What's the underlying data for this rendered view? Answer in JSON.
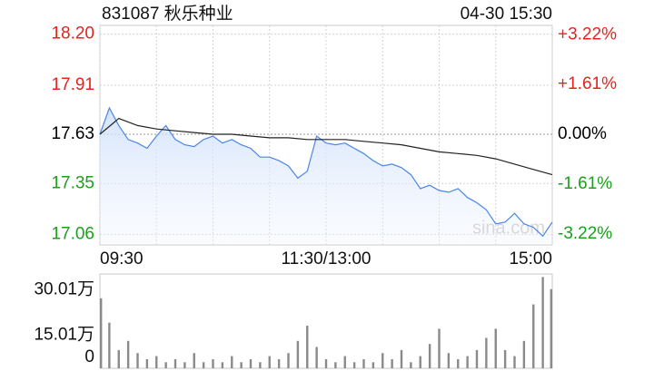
{
  "chart_data": [
    {
      "type": "line",
      "title": "831087 秋乐种业",
      "subtitle": "04-30 15:30",
      "watermark": "sina.com",
      "up_color": "#e8221e",
      "down_color": "#1aa01a",
      "flat_color": "#000000",
      "xlim": [
        0,
        240
      ],
      "xticks": [
        {
          "value": 0,
          "label": "09:30"
        },
        {
          "value": 30,
          "label": null
        },
        {
          "value": 60,
          "label": null
        },
        {
          "value": 90,
          "label": null
        },
        {
          "value": 120,
          "label": "11:30/13:00"
        },
        {
          "value": 150,
          "label": null
        },
        {
          "value": 180,
          "label": null
        },
        {
          "value": 210,
          "label": null
        },
        {
          "value": 240,
          "label": "15:00"
        }
      ],
      "ylim": [
        17.0,
        18.25
      ],
      "yticks": [
        {
          "value": 18.2,
          "label": "18.20"
        },
        17.91,
        17.63,
        17.35,
        17.06
      ],
      "y2lim": [
        -3.57,
        3.52
      ],
      "y2ticks": [
        {
          "value": 3.22,
          "label": "+3.22%"
        },
        {
          "value": 1.61,
          "label": "+1.61%"
        },
        {
          "value": 0,
          "label": "0.00%"
        },
        {
          "value": -1.61,
          "label": "-1.61%"
        },
        {
          "value": -3.22,
          "label": "-3.22%"
        }
      ],
      "grid": true,
      "series": [
        {
          "color": "#4a86e8",
          "fill": true,
          "x": [
            0,
            5,
            10,
            15,
            20,
            25,
            30,
            35,
            40,
            45,
            50,
            55,
            60,
            65,
            70,
            75,
            80,
            85,
            90,
            95,
            100,
            105,
            110,
            115,
            120,
            125,
            130,
            135,
            140,
            145,
            150,
            155,
            160,
            165,
            170,
            175,
            180,
            185,
            190,
            195,
            200,
            205,
            210,
            215,
            220,
            225,
            230,
            235,
            240
          ],
          "values": [
            17.63,
            17.78,
            17.68,
            17.6,
            17.58,
            17.55,
            17.62,
            17.68,
            17.6,
            17.57,
            17.56,
            17.6,
            17.62,
            17.58,
            17.6,
            17.57,
            17.55,
            17.5,
            17.5,
            17.48,
            17.45,
            17.38,
            17.42,
            17.62,
            17.58,
            17.57,
            17.58,
            17.55,
            17.52,
            17.48,
            17.45,
            17.46,
            17.44,
            17.4,
            17.32,
            17.34,
            17.31,
            17.3,
            17.32,
            17.27,
            17.24,
            17.2,
            17.12,
            17.13,
            17.18,
            17.12,
            17.1,
            17.05,
            17.13
          ]
        },
        {
          "color": "#222222",
          "fill": false,
          "x": [
            0,
            10,
            20,
            30,
            40,
            50,
            60,
            70,
            80,
            90,
            100,
            110,
            120,
            130,
            140,
            150,
            160,
            170,
            180,
            190,
            200,
            210,
            220,
            230,
            240
          ],
          "values": [
            17.63,
            17.72,
            17.68,
            17.66,
            17.65,
            17.64,
            17.63,
            17.63,
            17.62,
            17.61,
            17.61,
            17.6,
            17.6,
            17.6,
            17.59,
            17.58,
            17.57,
            17.55,
            17.53,
            17.52,
            17.51,
            17.49,
            17.46,
            17.43,
            17.4
          ]
        }
      ]
    },
    {
      "type": "bar",
      "color": "#8a8a8a",
      "xlim": [
        0,
        240
      ],
      "x": [
        0,
        5,
        10,
        15,
        20,
        25,
        30,
        35,
        40,
        45,
        50,
        55,
        60,
        65,
        70,
        75,
        80,
        85,
        90,
        95,
        100,
        105,
        110,
        115,
        120,
        125,
        130,
        135,
        140,
        145,
        150,
        155,
        160,
        165,
        170,
        175,
        180,
        185,
        190,
        195,
        200,
        205,
        210,
        215,
        220,
        225,
        230,
        235,
        240
      ],
      "values": [
        23,
        15,
        6,
        9,
        5,
        3,
        4,
        2,
        3,
        2,
        5,
        2,
        3,
        2,
        4,
        2,
        3,
        2,
        4,
        3,
        5,
        9,
        14,
        7,
        3,
        2,
        4,
        2,
        3,
        2,
        5,
        3,
        6,
        2,
        4,
        8,
        13,
        5,
        3,
        4,
        6,
        10,
        13,
        6,
        4,
        9,
        21,
        30,
        26
      ],
      "ylim": [
        0,
        31
      ],
      "yticks": [
        {
          "value": 30.01,
          "label": "30.01万"
        },
        {
          "value": 15.01,
          "label": "15.01万"
        },
        0
      ]
    }
  ]
}
